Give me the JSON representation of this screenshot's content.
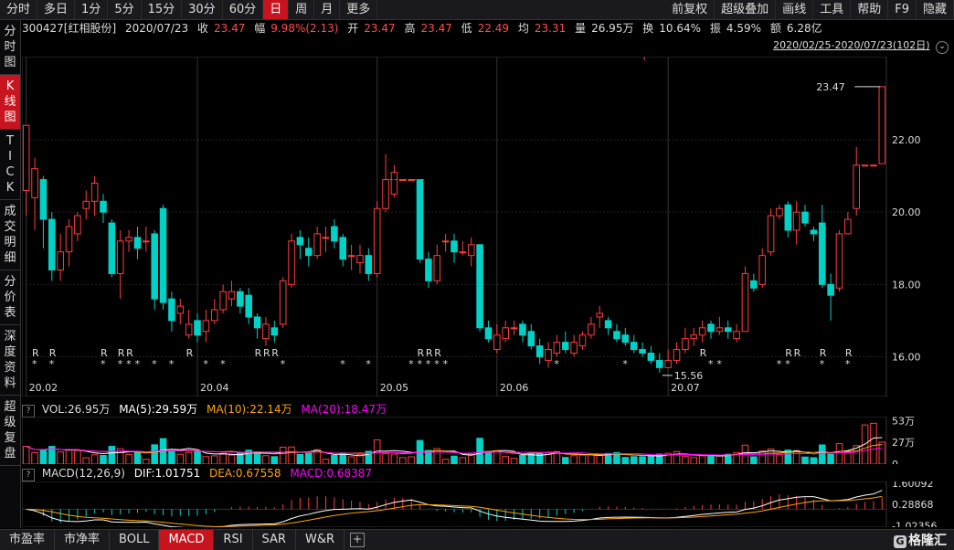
{
  "toolbar": {
    "periods": [
      "分时",
      "多日",
      "1分",
      "5分",
      "15分",
      "30分",
      "60分",
      "日",
      "周",
      "月",
      "更多"
    ],
    "active_period": "日",
    "right_items": [
      "前复权",
      "超级叠加",
      "画线",
      "工具",
      "帮助",
      "F9",
      "隐藏"
    ]
  },
  "leftnav": [
    "分时图",
    "K线图",
    "TICK",
    "成交明细",
    "分价表",
    "深度资料",
    "超级复盘"
  ],
  "leftnav_active": "K线图",
  "info": {
    "stock": "300427[红相股份]",
    "date": "2020/07/23",
    "close_label": "收",
    "close": "23.47",
    "change_label": "幅",
    "change": "9.98%(2.13)",
    "open_label": "开",
    "open": "23.47",
    "high_label": "高",
    "high": "23.47",
    "low_label": "低",
    "low": "22.49",
    "avg_label": "均",
    "avg": "23.31",
    "volume_label": "量",
    "volume": "26.95万",
    "turnover_label": "换",
    "turnover": "10.64%",
    "amplitude_label": "振",
    "amplitude": "4.59%",
    "amount_label": "额",
    "amount": "6.28亿"
  },
  "date_range": "2020/02/25-2020/07/23(102日)",
  "chart_data": {
    "type": "candlestick",
    "y_ticks": [
      "22.00",
      "20.00",
      "18.00",
      "16.00"
    ],
    "ylim": [
      14.9,
      24.3
    ],
    "x_ticks": [
      "20.02",
      "20.04",
      "20.05",
      "20.06",
      "20.07"
    ],
    "high_label": "23.47",
    "low_label": "15.56",
    "colors": {
      "up": "#ff3c3c",
      "down": "#00d2c8",
      "ma5": "#ffffff",
      "ma10": "#ffa500",
      "ma20": "#ff00ff"
    }
  },
  "volume": {
    "header_label": "VOL:26.95万",
    "ma5": "MA(5):29.59万",
    "ma10": "MA(10):22.14万",
    "ma20": "MA(20):18.47万",
    "y_ticks": [
      "53万",
      "27万",
      "0"
    ]
  },
  "macd": {
    "header_label": "MACD(12,26,9)",
    "dif": "DIF:1.01751",
    "dea": "DEA:0.67558",
    "macd": "MACD:0.68387",
    "y_ticks": [
      "1.60092",
      "0.28868",
      "-1.02356"
    ]
  },
  "bottom_tabs": [
    "市盈率",
    "市净率",
    "BOLL",
    "MACD",
    "RSI",
    "SAR",
    "W&R"
  ],
  "active_bottom_tab": "MACD",
  "logo": "格隆汇"
}
